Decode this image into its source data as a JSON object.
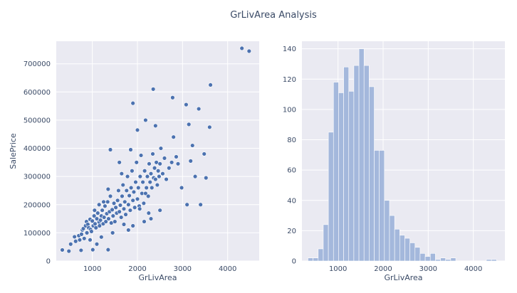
{
  "figure": {
    "title": "GrLivArea Analysis"
  },
  "chart_data": [
    {
      "type": "scatter",
      "title": "",
      "xlabel": "GrLivArea",
      "ylabel": "SalePrice",
      "xlim": [
        200,
        4700
      ],
      "ylim": [
        0,
        780000
      ],
      "xticks": [
        1000,
        2000,
        3000,
        4000
      ],
      "yticks": [
        0,
        100000,
        200000,
        300000,
        400000,
        500000,
        600000,
        700000
      ],
      "grid": true,
      "color": "#4c72b0",
      "points": [
        [
          334,
          39300
        ],
        [
          480,
          35000
        ],
        [
          520,
          60000
        ],
        [
          605,
          86000
        ],
        [
          630,
          70000
        ],
        [
          700,
          90000
        ],
        [
          720,
          75000
        ],
        [
          750,
          38000
        ],
        [
          760,
          95000
        ],
        [
          780,
          110000
        ],
        [
          800,
          115000
        ],
        [
          820,
          80000
        ],
        [
          850,
          125000
        ],
        [
          870,
          140000
        ],
        [
          880,
          100000
        ],
        [
          900,
          130000
        ],
        [
          920,
          118000
        ],
        [
          950,
          148000
        ],
        [
          960,
          112000
        ],
        [
          980,
          105000
        ],
        [
          1000,
          142000
        ],
        [
          1010,
          40000
        ],
        [
          1020,
          125000
        ],
        [
          1040,
          160000
        ],
        [
          1060,
          132000
        ],
        [
          1080,
          118000
        ],
        [
          1100,
          150000
        ],
        [
          1120,
          170000
        ],
        [
          1150,
          138000
        ],
        [
          1160,
          125000
        ],
        [
          1180,
          145000
        ],
        [
          1200,
          160000
        ],
        [
          1220,
          180000
        ],
        [
          1240,
          132000
        ],
        [
          1260,
          155000
        ],
        [
          1280,
          195000
        ],
        [
          1300,
          140000
        ],
        [
          1320,
          168000
        ],
        [
          1340,
          210000
        ],
        [
          1350,
          40000
        ],
        [
          1360,
          150000
        ],
        [
          1380,
          175000
        ],
        [
          1400,
          230000
        ],
        [
          1420,
          135000
        ],
        [
          1440,
          182000
        ],
        [
          1460,
          160000
        ],
        [
          1480,
          205000
        ],
        [
          1500,
          140000
        ],
        [
          1520,
          190000
        ],
        [
          1540,
          170000
        ],
        [
          1560,
          215000
        ],
        [
          1580,
          250000
        ],
        [
          1600,
          175000
        ],
        [
          1620,
          198000
        ],
        [
          1640,
          155000
        ],
        [
          1660,
          230000
        ],
        [
          1680,
          270000
        ],
        [
          1700,
          185000
        ],
        [
          1720,
          210000
        ],
        [
          1740,
          165000
        ],
        [
          1760,
          250000
        ],
        [
          1780,
          300000
        ],
        [
          1800,
          200000
        ],
        [
          1820,
          232000
        ],
        [
          1840,
          180000
        ],
        [
          1860,
          260000
        ],
        [
          1880,
          320000
        ],
        [
          1900,
          215000
        ],
        [
          1920,
          245000
        ],
        [
          1940,
          190000
        ],
        [
          1960,
          280000
        ],
        [
          1980,
          350000
        ],
        [
          2000,
          220000
        ],
        [
          2020,
          260000
        ],
        [
          2040,
          195000
        ],
        [
          2060,
          300000
        ],
        [
          2080,
          375000
        ],
        [
          2100,
          240000
        ],
        [
          2120,
          280000
        ],
        [
          2140,
          205000
        ],
        [
          2160,
          320000
        ],
        [
          2180,
          240000
        ],
        [
          2200,
          260000
        ],
        [
          2220,
          300000
        ],
        [
          2240,
          230000
        ],
        [
          2260,
          345000
        ],
        [
          2280,
          280000
        ],
        [
          2300,
          310000
        ],
        [
          2320,
          260000
        ],
        [
          2340,
          380000
        ],
        [
          2360,
          295000
        ],
        [
          2380,
          330000
        ],
        [
          2400,
          290000
        ],
        [
          2420,
          350000
        ],
        [
          2440,
          270000
        ],
        [
          2460,
          320000
        ],
        [
          2480,
          300000
        ],
        [
          2500,
          345000
        ],
        [
          2520,
          400000
        ],
        [
          2560,
          310000
        ],
        [
          2600,
          365000
        ],
        [
          2640,
          290000
        ],
        [
          2700,
          330000
        ],
        [
          2760,
          350000
        ],
        [
          2800,
          440000
        ],
        [
          2860,
          370000
        ],
        [
          2900,
          345000
        ],
        [
          2980,
          260000
        ],
        [
          3100,
          200000
        ],
        [
          3140,
          485000
        ],
        [
          3180,
          355000
        ],
        [
          3220,
          410000
        ],
        [
          3280,
          300000
        ],
        [
          3360,
          540000
        ],
        [
          3400,
          200000
        ],
        [
          3480,
          380000
        ],
        [
          3520,
          295000
        ],
        [
          3600,
          475000
        ],
        [
          3620,
          625000
        ],
        [
          2350,
          610000
        ],
        [
          2780,
          580000
        ],
        [
          3080,
          555000
        ],
        [
          4316,
          755000
        ],
        [
          4476,
          745000
        ],
        [
          1900,
          560000
        ],
        [
          2180,
          500000
        ],
        [
          2400,
          480000
        ],
        [
          1850,
          395000
        ],
        [
          2000,
          465000
        ],
        [
          1400,
          395000
        ],
        [
          1600,
          350000
        ],
        [
          1150,
          200000
        ],
        [
          1250,
          210000
        ],
        [
          1050,
          180000
        ],
        [
          1700,
          130000
        ],
        [
          1800,
          110000
        ],
        [
          2500,
          180000
        ],
        [
          2300,
          150000
        ],
        [
          1900,
          125000
        ],
        [
          1450,
          100000
        ],
        [
          1200,
          85000
        ],
        [
          1100,
          60000
        ],
        [
          950,
          75000
        ],
        [
          1350,
          255000
        ],
        [
          1650,
          310000
        ],
        [
          2050,
          185000
        ],
        [
          2250,
          170000
        ],
        [
          2150,
          140000
        ]
      ]
    },
    {
      "type": "bar",
      "title": "",
      "xlabel": "GrLivArea",
      "ylabel": "",
      "xlim": [
        200,
        4700
      ],
      "ylim": [
        0,
        145
      ],
      "xticks": [
        1000,
        2000,
        3000,
        4000
      ],
      "yticks": [
        0,
        20,
        40,
        60,
        80,
        100,
        120,
        140
      ],
      "grid": true,
      "color": "#a4b8dc",
      "bin_width": 113,
      "bin_start": 334,
      "values": [
        2,
        2,
        8,
        24,
        85,
        118,
        111,
        128,
        112,
        129,
        140,
        129,
        115,
        73,
        73,
        40,
        30,
        21,
        17,
        15,
        12,
        9,
        5,
        3,
        5,
        1,
        2,
        1,
        2,
        0,
        0,
        0,
        0,
        0,
        0,
        1,
        1
      ]
    }
  ]
}
